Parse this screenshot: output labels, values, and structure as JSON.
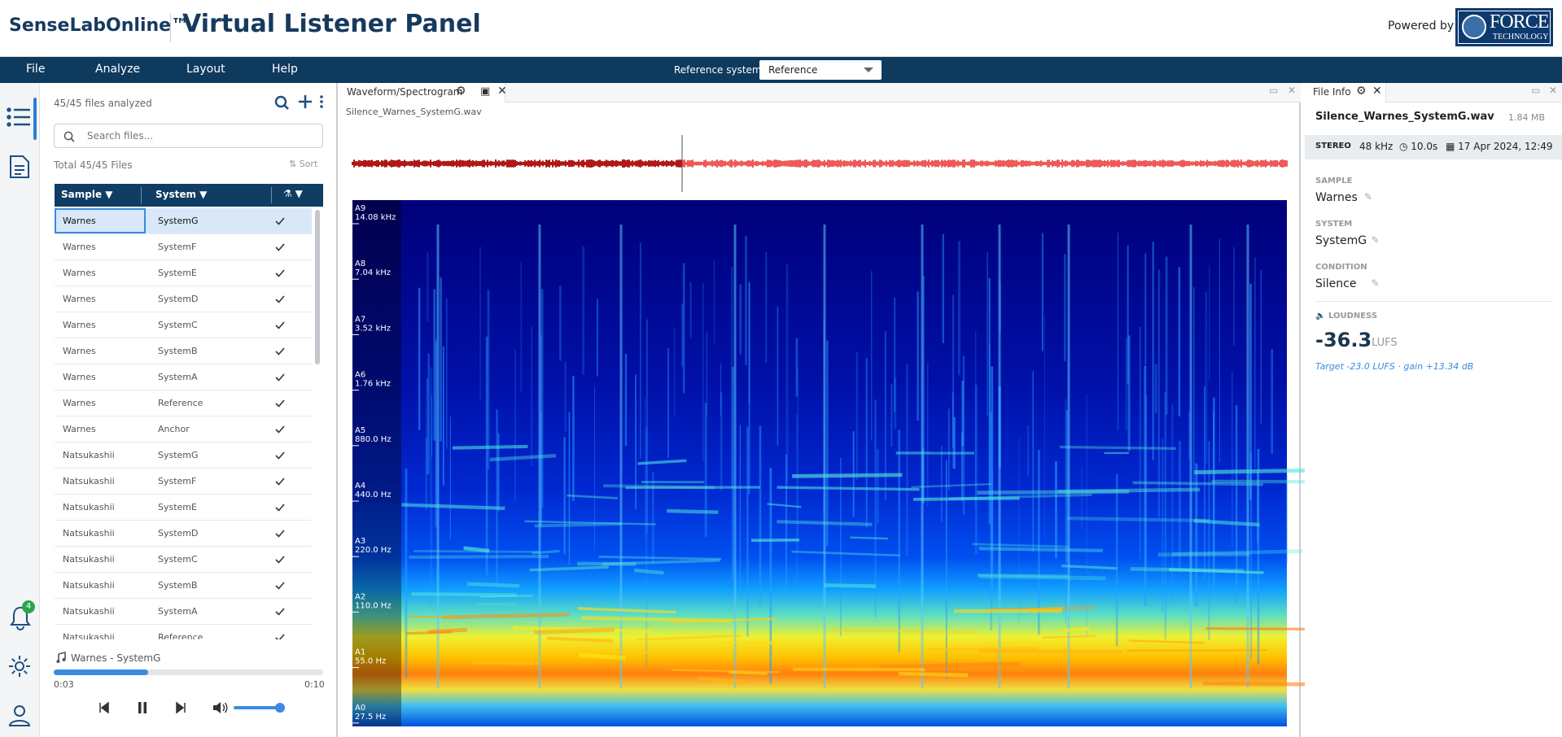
{
  "header": {
    "brand": "SenseLabOnline™",
    "title": "Virtual Listener Panel",
    "powered_by": "Powered by",
    "logo": "FORCE",
    "logo_sub": "TECHNOLOGY"
  },
  "menu": {
    "items": [
      "File",
      "Analyze",
      "Layout",
      "Help"
    ],
    "reference_label": "Reference system:",
    "reference_value": "Reference"
  },
  "sidebar": {
    "notifications": "4"
  },
  "files": {
    "status": "45/45 files analyzed",
    "search_placeholder": "Search files...",
    "total": "Total 45/45 Files",
    "sort": "Sort",
    "columns": [
      "Sample",
      "System"
    ],
    "rows": [
      [
        "Warnes",
        "SystemG"
      ],
      [
        "Warnes",
        "SystemF"
      ],
      [
        "Warnes",
        "SystemE"
      ],
      [
        "Warnes",
        "SystemD"
      ],
      [
        "Warnes",
        "SystemC"
      ],
      [
        "Warnes",
        "SystemB"
      ],
      [
        "Warnes",
        "SystemA"
      ],
      [
        "Warnes",
        "Reference"
      ],
      [
        "Warnes",
        "Anchor"
      ],
      [
        "Natsukashii",
        "SystemG"
      ],
      [
        "Natsukashii",
        "SystemF"
      ],
      [
        "Natsukashii",
        "SystemE"
      ],
      [
        "Natsukashii",
        "SystemD"
      ],
      [
        "Natsukashii",
        "SystemC"
      ],
      [
        "Natsukashii",
        "SystemB"
      ],
      [
        "Natsukashii",
        "SystemA"
      ],
      [
        "Natsukashii",
        "Reference"
      ]
    ]
  },
  "player": {
    "track": "Warnes - SystemG",
    "current": "0:03",
    "duration": "0:10"
  },
  "spectrogram": {
    "tab": "Waveform/Spectrogram",
    "file": "Silence_Warnes_SystemG.wav",
    "bands": [
      {
        "note": "A9",
        "freq": "14.08 kHz"
      },
      {
        "note": "A8",
        "freq": "7.04 kHz"
      },
      {
        "note": "A7",
        "freq": "3.52 kHz"
      },
      {
        "note": "A6",
        "freq": "1.76 kHz"
      },
      {
        "note": "A5",
        "freq": "880.0 Hz"
      },
      {
        "note": "A4",
        "freq": "440.0 Hz"
      },
      {
        "note": "A3",
        "freq": "220.0 Hz"
      },
      {
        "note": "A2",
        "freq": "110.0 Hz"
      },
      {
        "note": "A1",
        "freq": "55.0 Hz"
      },
      {
        "note": "A0",
        "freq": "27.5 Hz"
      }
    ]
  },
  "file_info": {
    "tab": "File Info",
    "filename": "Silence_Warnes_SystemG.wav",
    "size": "1.84 MB",
    "channels": "STEREO",
    "rate": "48 kHz",
    "duration": "10.0s",
    "date": "17 Apr 2024, 12:49",
    "fields": [
      {
        "label": "SAMPLE",
        "value": "Warnes"
      },
      {
        "label": "SYSTEM",
        "value": "SystemG"
      },
      {
        "label": "CONDITION",
        "value": "Silence"
      }
    ],
    "loudness_label": "LOUDNESS",
    "loudness_value": "-36.3",
    "loudness_unit": "LUFS",
    "target": "Target -23.0 LUFS · gain +13.34 dB"
  }
}
